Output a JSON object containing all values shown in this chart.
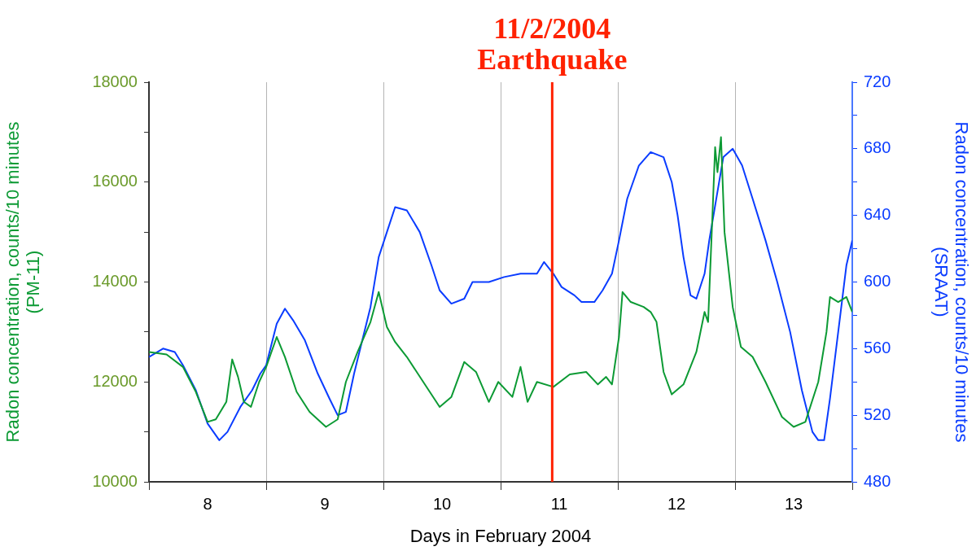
{
  "chart_data": {
    "type": "line",
    "xlabel": "Days in February 2004",
    "ylabel": "Radon concentration, counts/10 minutes\n(PM-11)",
    "y2label": "Radon concentration, counts/10 minutes\n(SRAAT)",
    "xlim": [
      7.5,
      13.5
    ],
    "xticks": [
      {
        "value": 7.5,
        "label": null
      },
      8,
      {
        "value": 8.5,
        "label": null
      },
      9,
      {
        "value": 9.5,
        "label": null
      },
      10,
      {
        "value": 10.5,
        "label": null
      },
      11,
      {
        "value": 11.5,
        "label": null
      },
      12,
      {
        "value": 12.5,
        "label": null
      },
      13,
      {
        "value": 13.5,
        "label": null
      }
    ],
    "ylim": [
      10000,
      18000
    ],
    "yticks": [
      10000,
      {
        "value": 11000,
        "label": null
      },
      12000,
      {
        "value": 13000,
        "label": null
      },
      14000,
      {
        "value": 15000,
        "label": null
      },
      16000,
      {
        "value": 17000,
        "label": null
      },
      18000
    ],
    "y2lim": [
      480,
      720
    ],
    "y2ticks": [
      480,
      {
        "value": 500,
        "label": null
      },
      520,
      {
        "value": 540,
        "label": null
      },
      560,
      {
        "value": 580,
        "label": null
      },
      600,
      {
        "value": 620,
        "label": null
      },
      640,
      {
        "value": 660,
        "label": null
      },
      680,
      {
        "value": 700,
        "label": null
      },
      720
    ],
    "grid": "x",
    "marker": "none",
    "ref_lines": [
      {
        "axis": "x",
        "value": 10.94,
        "label": "11/2/2004\nEarthquake",
        "color": "#ff2200"
      }
    ],
    "series": [
      {
        "color": "#0c9a34",
        "x": [
          7.5,
          7.65,
          7.79,
          7.9,
          8.0,
          8.07,
          8.16,
          8.21,
          8.26,
          8.31,
          8.37,
          8.44,
          8.5,
          8.59,
          8.66,
          8.76,
          8.87,
          9.01,
          9.11,
          9.18,
          9.28,
          9.39,
          9.46,
          9.53,
          9.6,
          9.7,
          9.84,
          9.98,
          10.08,
          10.19,
          10.29,
          10.4,
          10.48,
          10.6,
          10.67,
          10.73,
          10.81,
          10.95,
          11.09,
          11.23,
          11.33,
          11.4,
          11.45,
          11.51,
          11.54,
          11.61,
          11.72,
          11.78,
          11.83,
          11.89,
          11.96,
          12.06,
          12.17,
          12.24,
          12.27,
          12.31,
          12.33,
          12.35,
          12.38,
          12.41,
          12.48,
          12.55,
          12.65,
          12.76,
          12.9,
          13.0,
          13.1,
          13.21,
          13.28,
          13.31,
          13.38,
          13.45,
          13.5
        ],
        "values": [
          12600,
          12550,
          12300,
          11800,
          11200,
          11250,
          11600,
          12450,
          12100,
          11600,
          11500,
          12000,
          12300,
          12900,
          12500,
          11800,
          11400,
          11100,
          11250,
          12000,
          12600,
          13200,
          13800,
          13100,
          12800,
          12500,
          12000,
          11500,
          11700,
          12400,
          12200,
          11600,
          12000,
          11700,
          12300,
          11600,
          12000,
          11900,
          12150,
          12200,
          11950,
          12100,
          11950,
          12900,
          13800,
          13600,
          13500,
          13400,
          13200,
          12200,
          11750,
          11950,
          12600,
          13400,
          13200,
          15500,
          16700,
          16200,
          16900,
          15000,
          13500,
          12700,
          12500,
          12000,
          11300,
          11100,
          11200,
          12000,
          13000,
          13700,
          13600,
          13700,
          13400
        ]
      },
      {
        "color": "#0a3cff",
        "axis": "y2",
        "x": [
          7.5,
          7.62,
          7.72,
          7.79,
          7.9,
          8.0,
          8.1,
          8.17,
          8.28,
          8.38,
          8.45,
          8.5,
          8.59,
          8.66,
          8.73,
          8.83,
          8.94,
          9.04,
          9.11,
          9.18,
          9.25,
          9.32,
          9.39,
          9.46,
          9.53,
          9.6,
          9.7,
          9.81,
          9.91,
          9.98,
          10.08,
          10.19,
          10.26,
          10.4,
          10.53,
          10.67,
          10.81,
          10.87,
          10.95,
          11.02,
          11.13,
          11.19,
          11.3,
          11.37,
          11.45,
          11.51,
          11.58,
          11.68,
          11.78,
          11.89,
          11.96,
          12.01,
          12.06,
          12.12,
          12.17,
          12.24,
          12.28,
          12.34,
          12.4,
          12.48,
          12.56,
          12.65,
          12.76,
          12.86,
          12.97,
          13.07,
          13.16,
          13.21,
          13.26,
          13.31,
          13.38,
          13.45,
          13.5
        ],
        "values": [
          555,
          560,
          558,
          550,
          535,
          515,
          505,
          510,
          525,
          535,
          545,
          550,
          575,
          584,
          577,
          565,
          545,
          530,
          520,
          522,
          545,
          565,
          585,
          615,
          630,
          645,
          643,
          630,
          610,
          595,
          587,
          590,
          600,
          600,
          603,
          605,
          605,
          612,
          605,
          597,
          592,
          588,
          588,
          595,
          605,
          625,
          650,
          670,
          678,
          675,
          660,
          640,
          615,
          592,
          590,
          605,
          625,
          650,
          675,
          680,
          670,
          650,
          625,
          600,
          570,
          535,
          510,
          505,
          505,
          530,
          570,
          610,
          625
        ]
      }
    ]
  }
}
